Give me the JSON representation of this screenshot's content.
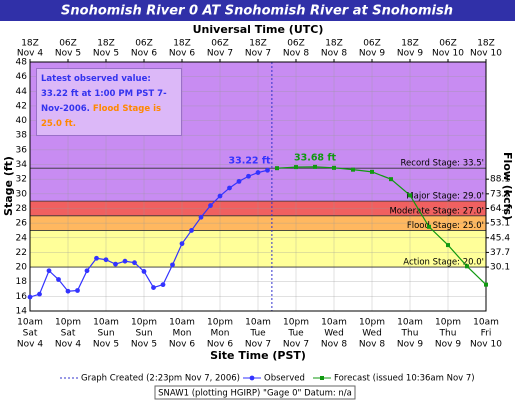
{
  "chart_data": {
    "type": "hydrograph",
    "title": "Snohomish River 0 AT Snohomish River at Snohomish",
    "x2_label": "Universal Time (UTC)",
    "x_label": "Site Time (PST)",
    "y_label": "Stage (ft)",
    "y2_label": "Flow (kcfs)",
    "xlim": [
      "2006-11-04T10:00-08:00",
      "2006-11-10T10:00-08:00"
    ],
    "xticks": [
      {
        "value": "2006-11-04T10:00-08:00",
        "label": [
          "10am",
          "Sat",
          "Nov 4"
        ]
      },
      {
        "value": "2006-11-04T22:00-08:00",
        "label": [
          "10pm",
          "Sat",
          "Nov 4"
        ]
      },
      {
        "value": "2006-11-05T10:00-08:00",
        "label": [
          "10am",
          "Sun",
          "Nov 5"
        ]
      },
      {
        "value": "2006-11-05T22:00-08:00",
        "label": [
          "10pm",
          "Sun",
          "Nov 5"
        ]
      },
      {
        "value": "2006-11-06T10:00-08:00",
        "label": [
          "10am",
          "Mon",
          "Nov 6"
        ]
      },
      {
        "value": "2006-11-06T22:00-08:00",
        "label": [
          "10pm",
          "Mon",
          "Nov 6"
        ]
      },
      {
        "value": "2006-11-07T10:00-08:00",
        "label": [
          "10am",
          "Tue",
          "Nov 7"
        ]
      },
      {
        "value": "2006-11-07T22:00-08:00",
        "label": [
          "10pm",
          "Tue",
          "Nov 7"
        ]
      },
      {
        "value": "2006-11-08T10:00-08:00",
        "label": [
          "10am",
          "Wed",
          "Nov 8"
        ]
      },
      {
        "value": "2006-11-08T22:00-08:00",
        "label": [
          "10pm",
          "Wed",
          "Nov 8"
        ]
      },
      {
        "value": "2006-11-09T10:00-08:00",
        "label": [
          "10am",
          "Thu",
          "Nov 9"
        ]
      },
      {
        "value": "2006-11-09T22:00-08:00",
        "label": [
          "10pm",
          "Thu",
          "Nov 9"
        ]
      },
      {
        "value": "2006-11-10T10:00-08:00",
        "label": [
          "10am",
          "Fri",
          "Nov 10"
        ]
      }
    ],
    "x2ticks": [
      {
        "value": "2006-11-04T18:00Z",
        "label": [
          "18Z",
          "Nov 4"
        ]
      },
      {
        "value": "2006-11-05T06:00Z",
        "label": [
          "06Z",
          "Nov 5"
        ]
      },
      {
        "value": "2006-11-05T18:00Z",
        "label": [
          "18Z",
          "Nov 5"
        ]
      },
      {
        "value": "2006-11-06T06:00Z",
        "label": [
          "06Z",
          "Nov 6"
        ]
      },
      {
        "value": "2006-11-06T18:00Z",
        "label": [
          "18Z",
          "Nov 6"
        ]
      },
      {
        "value": "2006-11-07T06:00Z",
        "label": [
          "06Z",
          "Nov 7"
        ]
      },
      {
        "value": "2006-11-07T18:00Z",
        "label": [
          "18Z",
          "Nov 7"
        ]
      },
      {
        "value": "2006-11-08T06:00Z",
        "label": [
          "06Z",
          "Nov 8"
        ]
      },
      {
        "value": "2006-11-08T18:00Z",
        "label": [
          "18Z",
          "Nov 8"
        ]
      },
      {
        "value": "2006-11-09T06:00Z",
        "label": [
          "06Z",
          "Nov 9"
        ]
      },
      {
        "value": "2006-11-09T18:00Z",
        "label": [
          "18Z",
          "Nov 9"
        ]
      },
      {
        "value": "2006-11-10T06:00Z",
        "label": [
          "06Z",
          "Nov 10"
        ]
      },
      {
        "value": "2006-11-10T18:00Z",
        "label": [
          "18Z",
          "Nov 10"
        ]
      }
    ],
    "ylim": [
      14,
      48
    ],
    "yticks": [
      14,
      16,
      18,
      20,
      22,
      24,
      26,
      28,
      30,
      32,
      34,
      36,
      38,
      40,
      42,
      44,
      46,
      48
    ],
    "y2ticks": [
      30.1,
      37.7,
      45.4,
      53.1,
      64.2,
      73.8,
      88.1
    ],
    "grid": true,
    "thresholds": [
      {
        "label": "Record Stage: 33.5'",
        "value": 33.5
      },
      {
        "label": "Major Stage: 29.0'",
        "value": 29.0,
        "color": "#c88cf2"
      },
      {
        "label": "Moderate Stage: 27.0'",
        "value": 27.0,
        "color": "#f06060"
      },
      {
        "label": "Flood Stage: 25.0'",
        "value": 25.0,
        "color": "#ffb860"
      },
      {
        "label": "Action Stage: 20.0'",
        "value": 20.0,
        "color": "#ffff99"
      }
    ],
    "created": {
      "name": "Graph Created (2:23pm Nov 7, 2006)",
      "x": "2006-11-07T14:23-08:00",
      "color": "#3333cc"
    },
    "series": [
      {
        "name": "Observed",
        "color": "#3333ff",
        "x": [
          "2006-11-04T10:00-08:00",
          "2006-11-04T13:00-08:00",
          "2006-11-04T16:00-08:00",
          "2006-11-04T19:00-08:00",
          "2006-11-04T22:00-08:00",
          "2006-11-05T01:00-08:00",
          "2006-11-05T04:00-08:00",
          "2006-11-05T07:00-08:00",
          "2006-11-05T10:00-08:00",
          "2006-11-05T13:00-08:00",
          "2006-11-05T16:00-08:00",
          "2006-11-05T19:00-08:00",
          "2006-11-05T22:00-08:00",
          "2006-11-06T01:00-08:00",
          "2006-11-06T04:00-08:00",
          "2006-11-06T07:00-08:00",
          "2006-11-06T10:00-08:00",
          "2006-11-06T13:00-08:00",
          "2006-11-06T16:00-08:00",
          "2006-11-06T19:00-08:00",
          "2006-11-06T22:00-08:00",
          "2006-11-07T01:00-08:00",
          "2006-11-07T04:00-08:00",
          "2006-11-07T07:00-08:00",
          "2006-11-07T10:00-08:00",
          "2006-11-07T13:00-08:00"
        ],
        "values": [
          15.9,
          16.3,
          19.5,
          18.3,
          16.7,
          16.8,
          19.5,
          21.2,
          21.0,
          20.4,
          20.8,
          20.6,
          19.4,
          17.2,
          17.6,
          20.3,
          23.2,
          25.0,
          26.8,
          28.4,
          29.7,
          30.8,
          31.7,
          32.4,
          32.9,
          33.22
        ],
        "value_labels": [
          null,
          null,
          null,
          null,
          null,
          null,
          null,
          null,
          null,
          null,
          null,
          null,
          null,
          null,
          null,
          null,
          null,
          null,
          null,
          null,
          null,
          null,
          null,
          null,
          null,
          "33.22 ft"
        ]
      },
      {
        "name": "Forecast (issued 10:36am Nov 7)",
        "color": "#119911",
        "x": [
          "2006-11-07T16:00-08:00",
          "2006-11-07T22:00-08:00",
          "2006-11-08T04:00-08:00",
          "2006-11-08T10:00-08:00",
          "2006-11-08T16:00-08:00",
          "2006-11-08T22:00-08:00",
          "2006-11-09T04:00-08:00",
          "2006-11-09T10:00-08:00",
          "2006-11-09T16:00-08:00",
          "2006-11-09T22:00-08:00",
          "2006-11-10T04:00-08:00",
          "2006-11-10T10:00-08:00"
        ],
        "values": [
          33.5,
          33.65,
          33.68,
          33.55,
          33.3,
          33.0,
          32.0,
          29.8,
          25.5,
          23.0,
          20.1,
          17.6
        ],
        "value_labels": [
          null,
          null,
          "33.68 ft",
          null,
          null,
          null,
          null,
          null,
          null,
          null,
          null,
          null
        ]
      }
    ],
    "annotation": {
      "observed": "Latest observed value: 33.22 ft at 1:00 PM PST 7-Nov-2006.",
      "flood": "Flood Stage is 25.0 ft."
    },
    "footer": "SNAW1 (plotting HGIRP) \"Gage 0\" Datum: n/a"
  }
}
